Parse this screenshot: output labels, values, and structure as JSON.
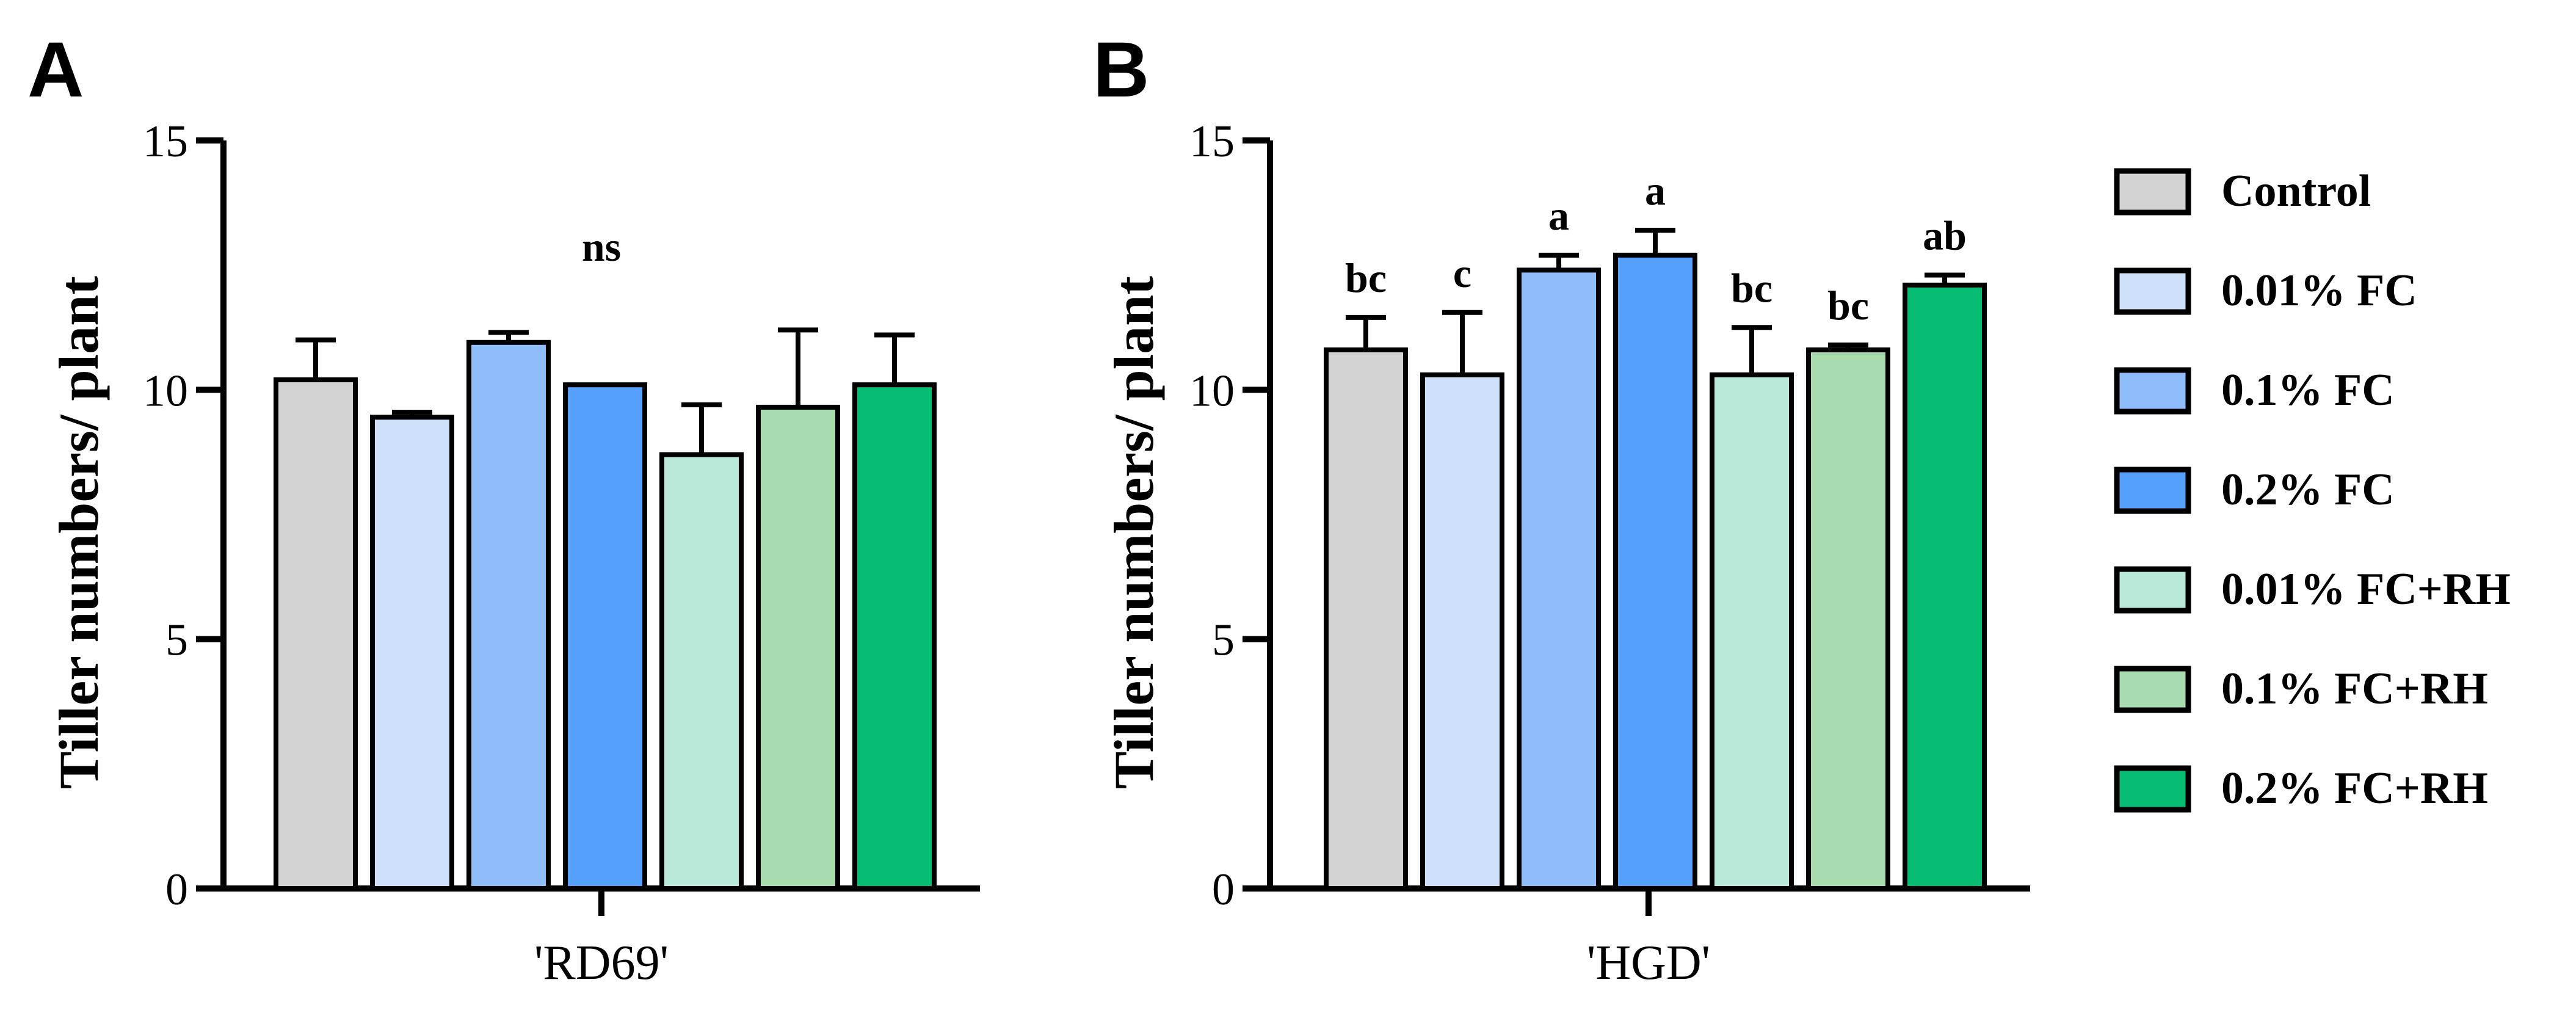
{
  "chart_data": [
    {
      "panel": "A",
      "type": "bar",
      "ylabel": "Tiller numbers/ plant",
      "ylim": [
        0,
        15
      ],
      "yticks": [
        0,
        5,
        10,
        15
      ],
      "category": "'RD69'",
      "significance": "ns",
      "series": [
        {
          "name": "Control",
          "value": 10.2,
          "error": 0.8,
          "label": ""
        },
        {
          "name": "0.01% FC",
          "value": 9.45,
          "error": 0.1,
          "label": ""
        },
        {
          "name": "0.1% FC",
          "value": 10.95,
          "error": 0.2,
          "label": ""
        },
        {
          "name": "0.2% FC",
          "value": 10.1,
          "error": 0,
          "label": ""
        },
        {
          "name": "0.01% FC+RH",
          "value": 8.7,
          "error": 1.0,
          "label": ""
        },
        {
          "name": "0.1% FC+RH",
          "value": 9.65,
          "error": 1.55,
          "label": ""
        },
        {
          "name": "0.2% FC+RH",
          "value": 10.1,
          "error": 1.0,
          "label": ""
        }
      ]
    },
    {
      "panel": "B",
      "type": "bar",
      "ylabel": "Tiller numbers/ plant",
      "ylim": [
        0,
        15
      ],
      "yticks": [
        0,
        5,
        10,
        15
      ],
      "category": "'HGD'",
      "significance": "",
      "series": [
        {
          "name": "Control",
          "value": 10.8,
          "error": 0.65,
          "label": "bc"
        },
        {
          "name": "0.01% FC",
          "value": 10.3,
          "error": 1.25,
          "label": "c"
        },
        {
          "name": "0.1% FC",
          "value": 12.4,
          "error": 0.3,
          "label": "a"
        },
        {
          "name": "0.2% FC",
          "value": 12.7,
          "error": 0.5,
          "label": "a"
        },
        {
          "name": "0.01% FC+RH",
          "value": 10.3,
          "error": 0.95,
          "label": "bc"
        },
        {
          "name": "0.1% FC+RH",
          "value": 10.8,
          "error": 0.1,
          "label": "bc"
        },
        {
          "name": "0.2% FC+RH",
          "value": 12.1,
          "error": 0.2,
          "label": "ab"
        }
      ]
    }
  ],
  "legend": {
    "items": [
      {
        "label": "Control",
        "color": "#d3d3d3"
      },
      {
        "label": "0.01% FC",
        "color": "#cfe0fa"
      },
      {
        "label": "0.1% FC",
        "color": "#8fbdfa"
      },
      {
        "label": "0.2% FC",
        "color": "#55a0fb"
      },
      {
        "label": "0.01% FC+RH",
        "color": "#b8e9d9"
      },
      {
        "label": "0.1% FC+RH",
        "color": "#a8dcae"
      },
      {
        "label": "0.2% FC+RH",
        "color": "#07bd74"
      }
    ]
  }
}
